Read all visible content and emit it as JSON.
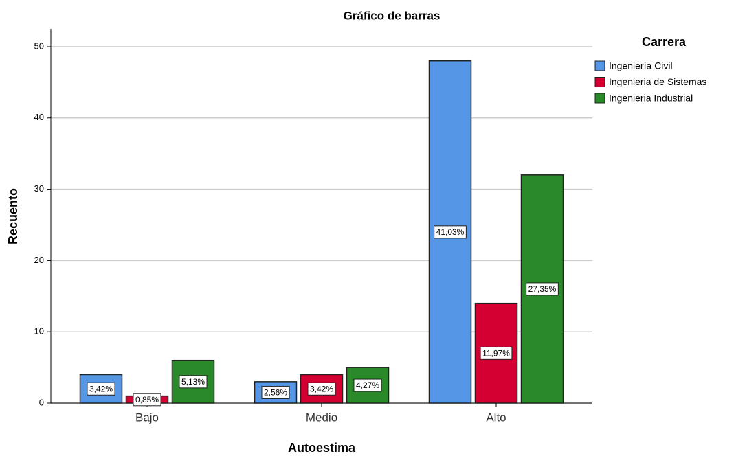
{
  "chart_data": {
    "type": "bar",
    "title": "Gráfico de barras",
    "x_label": "Autoestima",
    "y_label": "Recuento",
    "categories": [
      "Bajo",
      "Medio",
      "Alto"
    ],
    "legend_title": "Carrera",
    "series": [
      {
        "name": "Ingeniería Civil",
        "color": "#5596e6",
        "values": [
          4,
          3,
          48
        ],
        "labels": [
          "3,42%",
          "2,56%",
          "41,03%"
        ]
      },
      {
        "name": "Ingenieria de Sistemas",
        "color": "#d40032",
        "values": [
          1,
          4,
          14
        ],
        "labels": [
          "0,85%",
          "3,42%",
          "11,97%"
        ]
      },
      {
        "name": "Ingenieria Industrial",
        "color": "#2a8a2a",
        "values": [
          6,
          5,
          32
        ],
        "labels": [
          "5,13%",
          "4,27%",
          "27,35%"
        ]
      }
    ],
    "ylim": [
      0,
      52.5
    ],
    "yticks": [
      0,
      10,
      20,
      30,
      40,
      50
    ],
    "grid": true,
    "legend": "right"
  }
}
